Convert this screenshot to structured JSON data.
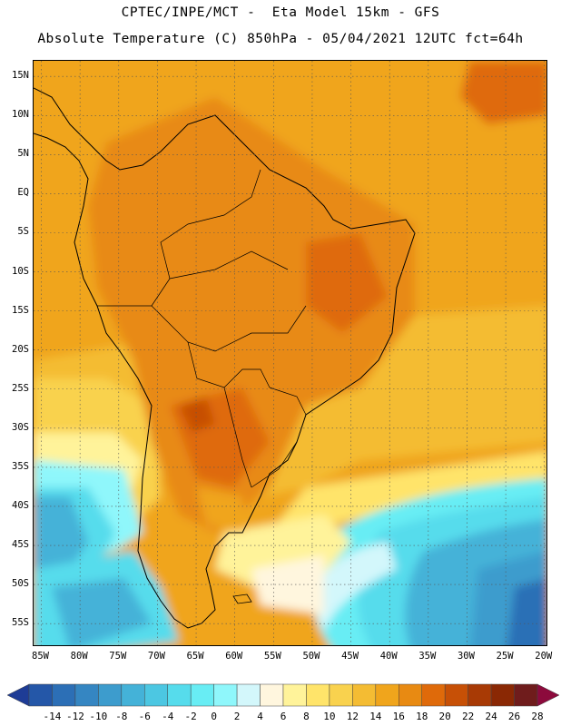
{
  "title": {
    "line1": "CPTEC/INPE/MCT -  Eta Model 15km - GFS",
    "line2": "Absolute Temperature (C) 850hPa - 05/04/2021 12UTC fct=64h"
  },
  "map": {
    "region": "South America",
    "variable": "Absolute Temperature (C) 850hPa",
    "lat_range": [
      -58,
      17
    ],
    "lon_range": [
      -86,
      -19.5
    ],
    "lat_labels": [
      "15N",
      "10N",
      "5N",
      "EQ",
      "5S",
      "10S",
      "15S",
      "20S",
      "25S",
      "30S",
      "35S",
      "40S",
      "45S",
      "50S",
      "55S"
    ],
    "lon_labels": [
      "85W",
      "80W",
      "75W",
      "70W",
      "65W",
      "60W",
      "55W",
      "50W",
      "45W",
      "40W",
      "35W",
      "30W",
      "25W",
      "20W"
    ]
  },
  "colorbar": {
    "labels": [
      "-14",
      "-12",
      "-10",
      "-8",
      "-6",
      "-4",
      "-2",
      "0",
      "2",
      "4",
      "6",
      "8",
      "10",
      "12",
      "14",
      "16",
      "18",
      "20",
      "22",
      "24",
      "26",
      "28"
    ],
    "colors": [
      "#1e3c96",
      "#2457a8",
      "#2c6fb6",
      "#3586c2",
      "#3d9ccd",
      "#44b2d8",
      "#4cc7e2",
      "#56dcec",
      "#68edf4",
      "#8ff7fb",
      "#d3f7fb",
      "#fff6de",
      "#fff39a",
      "#ffe46a",
      "#f9d24e",
      "#f4bc33",
      "#f0a51c",
      "#e88a12",
      "#df6a0a",
      "#c75006",
      "#a83a05",
      "#8a2804",
      "#6f1c1c",
      "#8c0a3c"
    ]
  }
}
